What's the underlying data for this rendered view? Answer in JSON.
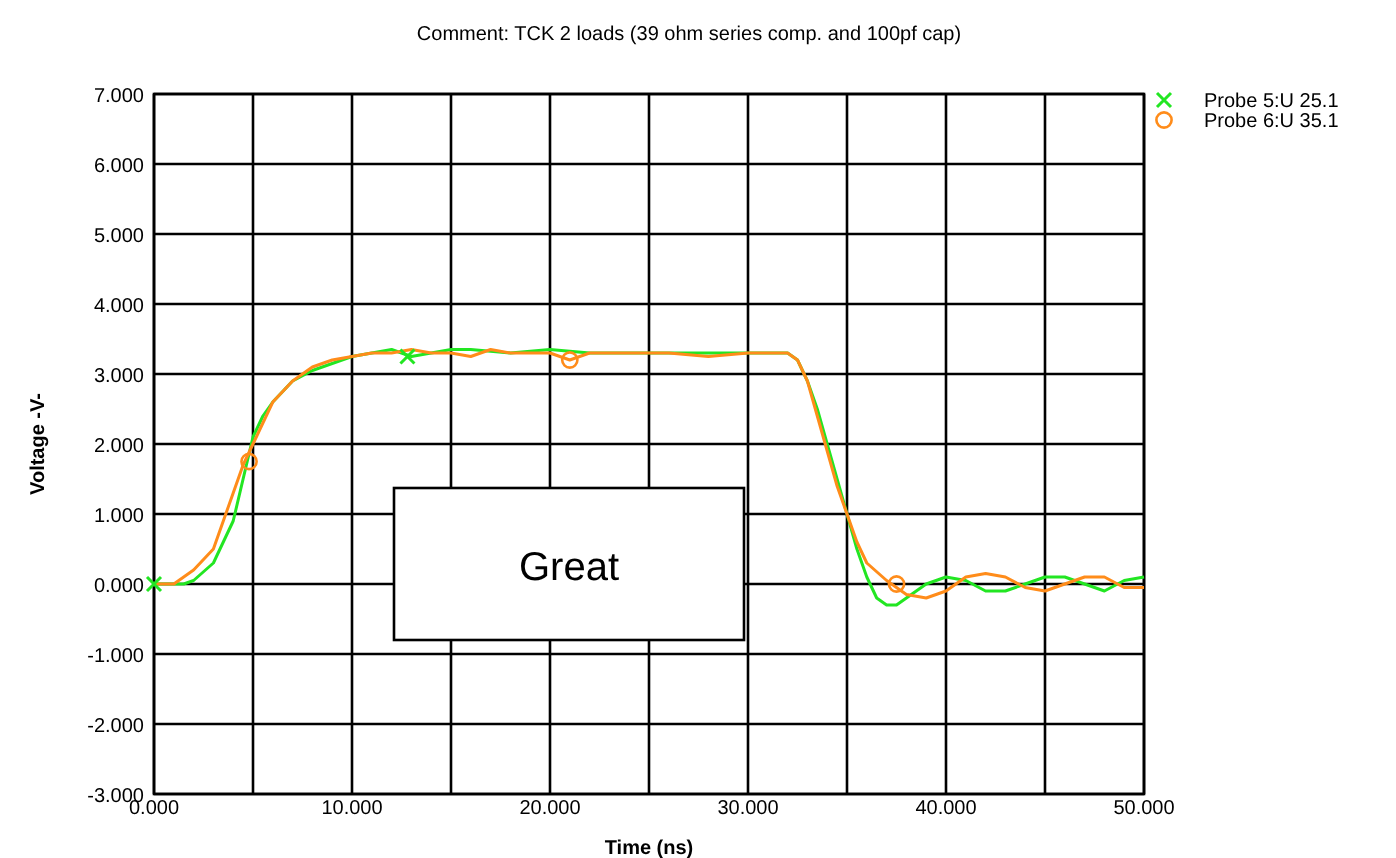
{
  "chart_data": {
    "type": "line",
    "title": "Comment: TCK 2 loads (39 ohm series comp. and 100pf cap)",
    "xlabel": "Time (ns)",
    "ylabel": "Voltage  -V-",
    "xlim": [
      0,
      50
    ],
    "ylim": [
      -3,
      7
    ],
    "xticks": [
      {
        "value": 0,
        "label": "0.000"
      },
      {
        "value": 5,
        "label": null
      },
      {
        "value": 10,
        "label": "10.000"
      },
      {
        "value": 15,
        "label": null
      },
      {
        "value": 20,
        "label": "20.000"
      },
      {
        "value": 25,
        "label": null
      },
      {
        "value": 30,
        "label": "30.000"
      },
      {
        "value": 35,
        "label": null
      },
      {
        "value": 40,
        "label": "40.000"
      },
      {
        "value": 45,
        "label": null
      },
      {
        "value": 50,
        "label": "50.000"
      }
    ],
    "yticks": [
      {
        "value": -3,
        "label": "-3.000"
      },
      {
        "value": -2,
        "label": "-2.000"
      },
      {
        "value": -1,
        "label": "-1.000"
      },
      {
        "value": 0,
        "label": "0.000"
      },
      {
        "value": 1,
        "label": "1.000"
      },
      {
        "value": 2,
        "label": "2.000"
      },
      {
        "value": 3,
        "label": "3.000"
      },
      {
        "value": 4,
        "label": "4.000"
      },
      {
        "value": 5,
        "label": "5.000"
      },
      {
        "value": 6,
        "label": "6.000"
      },
      {
        "value": 7,
        "label": "7.000"
      }
    ],
    "grid": true,
    "legend": "top right",
    "annotations": [
      "Great"
    ],
    "series": [
      {
        "name": "Probe 5:U 25.1",
        "color": "#22e622",
        "x": [
          0,
          1.5,
          2,
          3,
          4,
          4.5,
          5,
          5.5,
          6,
          7,
          8,
          9,
          10,
          11,
          12,
          13,
          14,
          15,
          16,
          18,
          20,
          22,
          24,
          26,
          28,
          30,
          32,
          32.5,
          33,
          33.5,
          34,
          34.5,
          35,
          35.5,
          36,
          36.5,
          37,
          37.5,
          38,
          39,
          40,
          41,
          42,
          43,
          44,
          45,
          46,
          47,
          48,
          49,
          50
        ],
        "values": [
          0,
          0,
          0.05,
          0.3,
          0.9,
          1.5,
          2.1,
          2.4,
          2.6,
          2.9,
          3.05,
          3.15,
          3.25,
          3.3,
          3.35,
          3.25,
          3.3,
          3.35,
          3.35,
          3.3,
          3.35,
          3.3,
          3.3,
          3.3,
          3.3,
          3.3,
          3.3,
          3.2,
          2.9,
          2.5,
          2.0,
          1.5,
          1.0,
          0.5,
          0.1,
          -0.2,
          -0.3,
          -0.3,
          -0.2,
          0,
          0.1,
          0.05,
          -0.1,
          -0.1,
          0,
          0.1,
          0.1,
          0,
          -0.1,
          0.05,
          0.1
        ]
      },
      {
        "name": "Probe 6:U 35.1",
        "color": "#ff8c1a",
        "x": [
          0,
          1,
          1.5,
          2,
          2.5,
          3,
          3.5,
          4,
          4.5,
          5,
          5.5,
          6,
          7,
          8,
          9,
          10,
          11,
          12,
          13,
          14,
          15,
          16,
          17,
          18,
          20,
          21,
          22,
          24,
          26,
          28,
          30,
          32,
          32.5,
          33,
          33.5,
          34,
          34.5,
          35,
          35.5,
          36,
          37,
          38,
          39,
          40,
          41,
          42,
          43,
          44,
          45,
          46,
          47,
          48,
          49,
          50
        ],
        "values": [
          0,
          0,
          0.1,
          0.2,
          0.35,
          0.5,
          0.9,
          1.3,
          1.7,
          2.0,
          2.3,
          2.6,
          2.9,
          3.1,
          3.2,
          3.25,
          3.3,
          3.3,
          3.35,
          3.3,
          3.3,
          3.25,
          3.35,
          3.3,
          3.3,
          3.2,
          3.3,
          3.3,
          3.3,
          3.25,
          3.3,
          3.3,
          3.2,
          2.9,
          2.4,
          1.9,
          1.4,
          1.0,
          0.6,
          0.3,
          0.05,
          -0.15,
          -0.2,
          -0.1,
          0.1,
          0.15,
          0.1,
          -0.05,
          -0.1,
          0,
          0.1,
          0.1,
          -0.05,
          -0.05
        ]
      },
      {
        "type": "scatter",
        "color": "#22e622",
        "marker": "cross",
        "x": [
          0,
          12.8
        ],
        "values": [
          0,
          3.25
        ]
      },
      {
        "type": "scatter",
        "color": "#ff8c1a",
        "marker": "circle",
        "x": [
          4.8,
          21,
          37.5
        ],
        "values": [
          1.75,
          3.2,
          0
        ]
      }
    ]
  }
}
